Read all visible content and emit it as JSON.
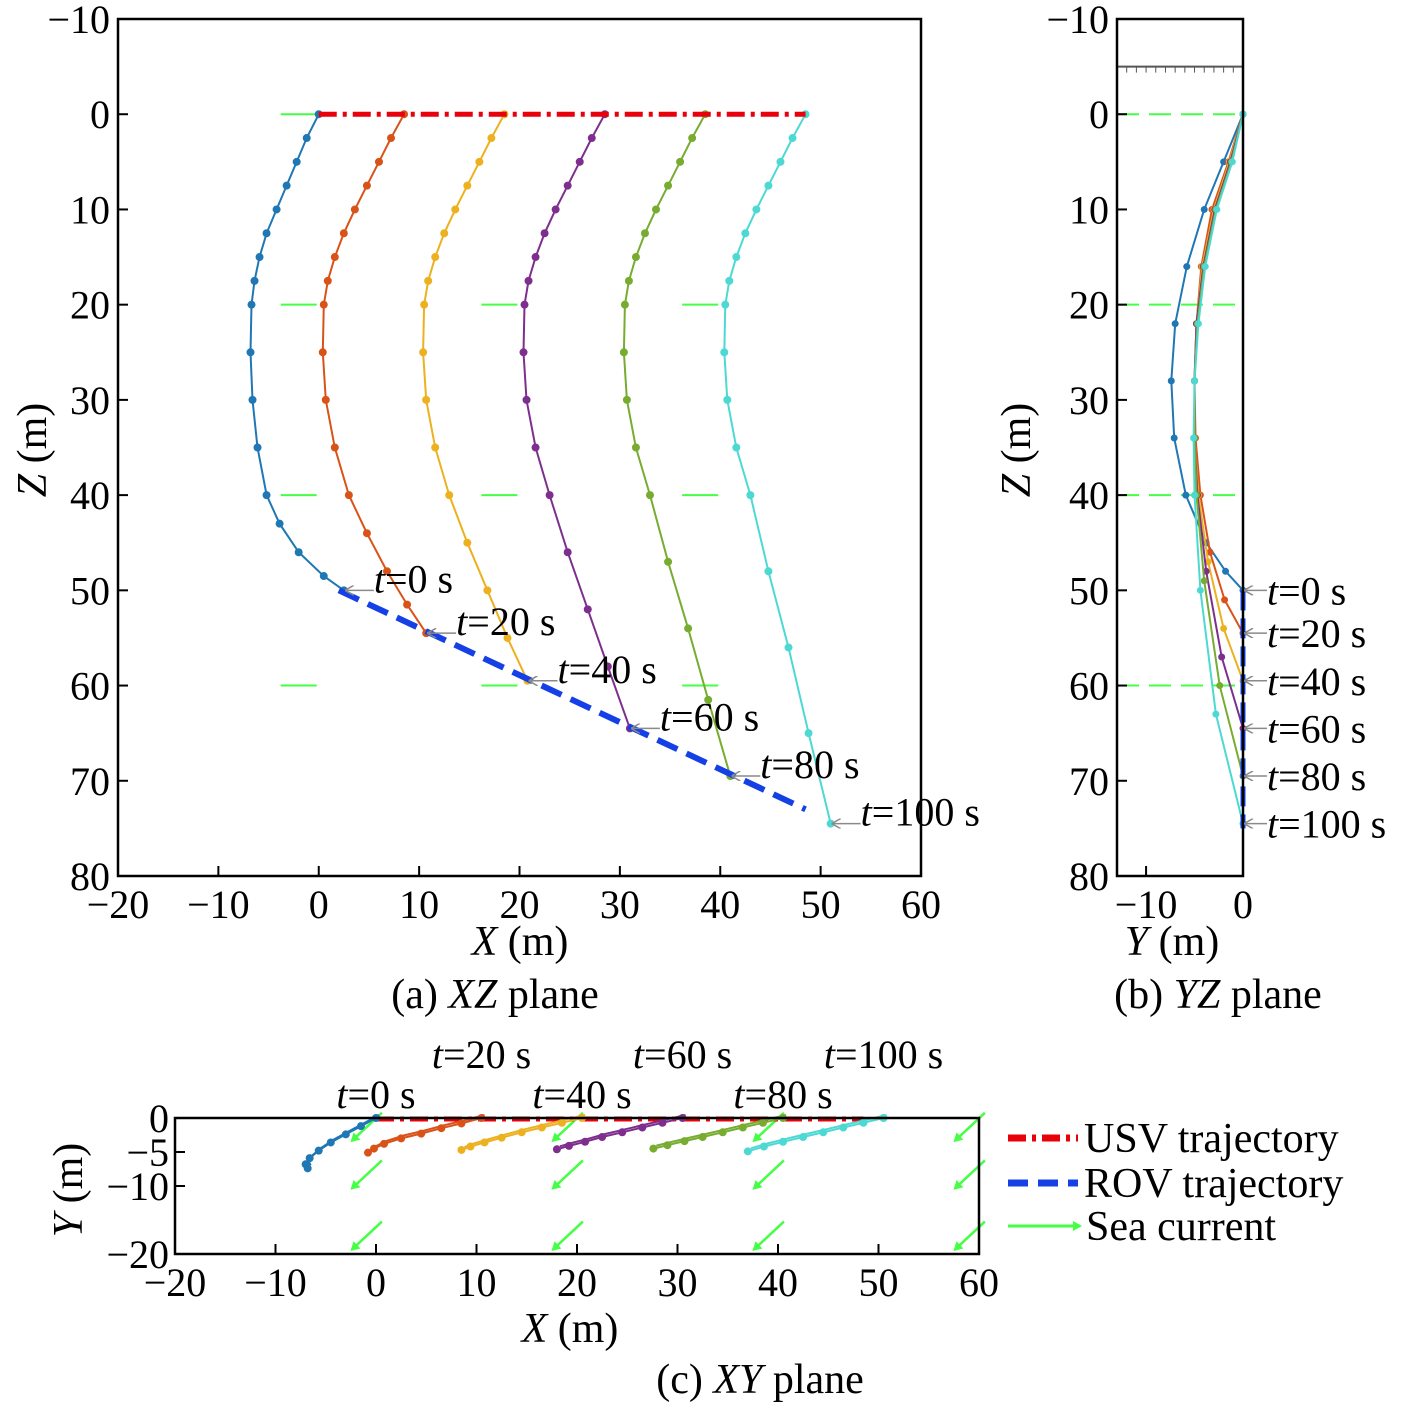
{
  "chart_data": [
    {
      "id": "xz",
      "type": "line",
      "caption": {
        "prefix": "(a) ",
        "italic": "XZ",
        "suffix": " plane"
      },
      "xlabel": {
        "italic": "X",
        "rest": " (m)"
      },
      "ylabel": {
        "italic": "Z",
        "rest": " (m)"
      },
      "xlim": [
        -20,
        60
      ],
      "ylim": [
        -10,
        80
      ],
      "y_inverted": true,
      "xticks": [
        -20,
        -10,
        0,
        10,
        20,
        30,
        40,
        50,
        60
      ],
      "yticks": [
        -10,
        0,
        10,
        20,
        30,
        40,
        50,
        60,
        70,
        80
      ],
      "xtick_labels": [
        "−20",
        "−10",
        "0",
        "10",
        "20",
        "30",
        "40",
        "50",
        "60"
      ],
      "ytick_labels": [
        "−10",
        "0",
        "10",
        "20",
        "30",
        "40",
        "50",
        "60",
        "70",
        "80"
      ],
      "usv_trajectory": {
        "x": [
          0,
          48.5
        ],
        "z": [
          0,
          0
        ]
      },
      "rov_trajectory": {
        "x": [
          2,
          48.5
        ],
        "z": [
          50,
          73
        ]
      },
      "current_markers": [
        {
          "x": -2,
          "z": 0
        },
        {
          "x": -2,
          "z": 20
        },
        {
          "x": -2,
          "z": 40
        },
        {
          "x": -2,
          "z": 60
        },
        {
          "x": 18,
          "z": 20
        },
        {
          "x": 18,
          "z": 40
        },
        {
          "x": 18,
          "z": 60
        },
        {
          "x": 38,
          "z": 20
        },
        {
          "x": 38,
          "z": 40
        },
        {
          "x": 38,
          "z": 60
        }
      ],
      "series": [
        {
          "label_t": "t",
          "label_rest": "=0 s",
          "color": "#1f77b4",
          "x": [
            0,
            -1.2,
            -2.2,
            -3.2,
            -4.2,
            -5.2,
            -5.9,
            -6.4,
            -6.7,
            -6.8,
            -6.6,
            -6.1,
            -5.2,
            -3.9,
            -2.0,
            0.5,
            2.5
          ],
          "z": [
            0,
            2.5,
            5.0,
            7.5,
            10.0,
            12.5,
            15.0,
            17.5,
            20.0,
            25.0,
            30.0,
            35.0,
            40.0,
            43.0,
            46.0,
            48.5,
            50.0
          ]
        },
        {
          "label_t": "t",
          "label_rest": "=20 s",
          "color": "#d95319",
          "x": [
            8.5,
            7.2,
            6.0,
            4.8,
            3.6,
            2.5,
            1.6,
            0.9,
            0.5,
            0.4,
            0.7,
            1.6,
            3.0,
            4.8,
            6.8,
            8.8,
            10.7
          ],
          "z": [
            0,
            2.5,
            5.0,
            7.5,
            10.0,
            12.5,
            15.0,
            17.5,
            20.0,
            25.0,
            30.0,
            35.0,
            40.0,
            44.0,
            48.0,
            51.5,
            54.5
          ]
        },
        {
          "label_t": "t",
          "label_rest": "=40 s",
          "color": "#edb120",
          "x": [
            18.5,
            17.2,
            16.0,
            14.8,
            13.6,
            12.5,
            11.6,
            10.9,
            10.5,
            10.4,
            10.7,
            11.6,
            13.0,
            14.8,
            16.8,
            18.8,
            20.8
          ],
          "z": [
            0,
            2.5,
            5.0,
            7.5,
            10.0,
            12.5,
            15.0,
            17.5,
            20.0,
            25.0,
            30.0,
            35.0,
            40.0,
            45.0,
            50.0,
            55.0,
            59.5
          ]
        },
        {
          "label_t": "t",
          "label_rest": "=60 s",
          "color": "#7e2f8e",
          "x": [
            28.5,
            27.2,
            26.0,
            24.8,
            23.6,
            22.5,
            21.6,
            20.9,
            20.5,
            20.4,
            20.7,
            21.6,
            23.0,
            24.8,
            26.8,
            28.8,
            31.0
          ],
          "z": [
            0,
            2.5,
            5.0,
            7.5,
            10.0,
            12.5,
            15.0,
            17.5,
            20.0,
            25.0,
            30.0,
            35.0,
            40.0,
            46.0,
            52.0,
            58.0,
            64.5
          ]
        },
        {
          "label_t": "t",
          "label_rest": "=80 s",
          "color": "#77ac30",
          "x": [
            38.5,
            37.2,
            36.0,
            34.8,
            33.6,
            32.5,
            31.6,
            30.9,
            30.5,
            30.4,
            30.7,
            31.6,
            33.0,
            34.8,
            36.8,
            38.8,
            41.0
          ],
          "z": [
            0,
            2.5,
            5.0,
            7.5,
            10.0,
            12.5,
            15.0,
            17.5,
            20.0,
            25.0,
            30.0,
            35.0,
            40.0,
            47.0,
            54.0,
            61.5,
            69.5
          ]
        },
        {
          "label_t": "t",
          "label_rest": "=100 s",
          "color": "#4dd9d3",
          "x": [
            48.5,
            47.2,
            46.0,
            44.8,
            43.6,
            42.5,
            41.6,
            40.9,
            40.5,
            40.4,
            40.7,
            41.6,
            43.0,
            44.8,
            46.8,
            48.8,
            51.0
          ],
          "z": [
            0,
            2.5,
            5.0,
            7.5,
            10.0,
            12.5,
            15.0,
            17.5,
            20.0,
            25.0,
            30.0,
            35.0,
            40.0,
            48.0,
            56.0,
            65.0,
            74.5
          ]
        }
      ]
    },
    {
      "id": "yz",
      "type": "line",
      "caption": {
        "prefix": "(b) ",
        "italic": "YZ",
        "suffix": " plane"
      },
      "xlabel": {
        "italic": "Y",
        "rest": " (m)"
      },
      "ylabel": {
        "italic": "Z",
        "rest": " (m)"
      },
      "xlim": [
        -13,
        0
      ],
      "ylim": [
        -10,
        80
      ],
      "y_inverted": true,
      "xticks": [
        -10,
        0
      ],
      "yticks": [
        -10,
        0,
        10,
        20,
        30,
        40,
        50,
        60,
        70,
        80
      ],
      "xtick_labels": [
        "−10",
        "0"
      ],
      "ytick_labels": [
        "−10",
        "0",
        "10",
        "20",
        "30",
        "40",
        "50",
        "60",
        "70",
        "80"
      ],
      "surface_z": -5,
      "rov_y": 0,
      "rov_z": [
        50,
        75
      ],
      "current_marker_z": [
        0,
        20,
        40,
        60
      ],
      "series": [
        {
          "label_t": "t",
          "label_rest": "=0 s",
          "color": "#1f77b4",
          "y": [
            0,
            -2.0,
            -4.0,
            -5.8,
            -7.0,
            -7.4,
            -7.1,
            -5.9,
            -3.8,
            -1.8,
            0
          ],
          "z": [
            0,
            5,
            10,
            16,
            22,
            28,
            34,
            40,
            45,
            48,
            50
          ]
        },
        {
          "label_t": "t",
          "label_rest": "=20 s",
          "color": "#d95319",
          "y": [
            0,
            -1.5,
            -3.2,
            -4.3,
            -4.8,
            -5.0,
            -4.9,
            -4.4,
            -3.4,
            -1.9,
            0
          ],
          "z": [
            0,
            5,
            10,
            16,
            22,
            28,
            34,
            40,
            46,
            51,
            54.5
          ]
        },
        {
          "label_t": "t",
          "label_rest": "=40 s",
          "color": "#edb120",
          "y": [
            0,
            -1.4,
            -3.0,
            -4.2,
            -4.8,
            -5.0,
            -5.0,
            -4.6,
            -3.6,
            -2.0,
            0
          ],
          "z": [
            0,
            5,
            10,
            16,
            22,
            28,
            34,
            40,
            47,
            54,
            59.5
          ]
        },
        {
          "label_t": "t",
          "label_rest": "=60 s",
          "color": "#7e2f8e",
          "y": [
            0,
            -1.3,
            -2.9,
            -4.1,
            -4.8,
            -5.0,
            -5.0,
            -4.7,
            -3.8,
            -2.2,
            0
          ],
          "z": [
            0,
            5,
            10,
            16,
            22,
            28,
            34,
            40,
            48,
            57,
            64.5
          ]
        },
        {
          "label_t": "t",
          "label_rest": "=80 s",
          "color": "#77ac30",
          "y": [
            0,
            -1.2,
            -2.8,
            -4.0,
            -4.7,
            -5.0,
            -5.0,
            -4.8,
            -4.0,
            -2.4,
            0
          ],
          "z": [
            0,
            5,
            10,
            16,
            22,
            28,
            34,
            40,
            49,
            60,
            69.5
          ]
        },
        {
          "label_t": "t",
          "label_rest": "=100 s",
          "color": "#4dd9d3",
          "y": [
            0,
            -1.1,
            -2.7,
            -3.9,
            -4.6,
            -5.0,
            -5.1,
            -5.0,
            -4.4,
            -2.8,
            0
          ],
          "z": [
            0,
            5,
            10,
            16,
            22,
            28,
            34,
            40,
            50,
            63,
            74.5
          ]
        }
      ]
    },
    {
      "id": "xy",
      "type": "line",
      "caption": {
        "prefix": "(c) ",
        "italic": "XY",
        "suffix": " plane"
      },
      "xlabel": {
        "italic": "X",
        "rest": " (m)"
      },
      "ylabel": {
        "italic": "Y",
        "rest": " (m)"
      },
      "xlim": [
        -20,
        60
      ],
      "ylim": [
        -20,
        0
      ],
      "xticks": [
        -20,
        -10,
        0,
        10,
        20,
        30,
        40,
        50,
        60
      ],
      "yticks": [
        0,
        -5,
        -10,
        -20
      ],
      "xtick_labels": [
        "−20",
        "−10",
        "0",
        "10",
        "20",
        "30",
        "40",
        "50",
        "60"
      ],
      "ytick_labels": [
        "0",
        "−5",
        "−10",
        "−20"
      ],
      "usv_trajectory": {
        "x": [
          0,
          48.5
        ],
        "y": [
          0,
          0
        ]
      },
      "sea_current_arrows": [
        {
          "x": -2,
          "y": -1
        },
        {
          "x": -2,
          "y": -8
        },
        {
          "x": -2,
          "y": -17
        },
        {
          "x": 18,
          "y": -1
        },
        {
          "x": 18,
          "y": -8
        },
        {
          "x": 18,
          "y": -17
        },
        {
          "x": 38,
          "y": -1
        },
        {
          "x": 38,
          "y": -8
        },
        {
          "x": 38,
          "y": -17
        },
        {
          "x": 58,
          "y": -1
        },
        {
          "x": 58,
          "y": -8
        },
        {
          "x": 58,
          "y": -17
        }
      ],
      "series": [
        {
          "label_t": "t",
          "label_rest": "=0 s",
          "color": "#1f77b4",
          "x": [
            0,
            -1.5,
            -3.0,
            -4.5,
            -5.7,
            -6.6,
            -7.0,
            -6.8
          ],
          "y": [
            0,
            -1.2,
            -2.4,
            -3.6,
            -4.8,
            -5.9,
            -6.8,
            -7.4
          ]
        },
        {
          "label_t": "t",
          "label_rest": "=20 s",
          "color": "#d95319",
          "x": [
            10.5,
            8.5,
            6.5,
            4.5,
            2.5,
            0.8,
            -0.2,
            -0.8
          ],
          "y": [
            0,
            -0.8,
            -1.5,
            -2.3,
            -3.0,
            -3.8,
            -4.5,
            -5.1
          ]
        },
        {
          "label_t": "t",
          "label_rest": "=40 s",
          "color": "#edb120",
          "x": [
            20.5,
            18.5,
            16.5,
            14.5,
            12.5,
            10.8,
            9.4,
            8.5
          ],
          "y": [
            0,
            -0.7,
            -1.4,
            -2.1,
            -2.9,
            -3.6,
            -4.2,
            -4.7
          ]
        },
        {
          "label_t": "t",
          "label_rest": "=60 s",
          "color": "#7e2f8e",
          "x": [
            30.5,
            28.5,
            26.5,
            24.5,
            22.5,
            20.8,
            19.2,
            18.0
          ],
          "y": [
            0,
            -0.7,
            -1.4,
            -2.1,
            -2.8,
            -3.5,
            -4.1,
            -4.6
          ]
        },
        {
          "label_t": "t",
          "label_rest": "=80 s",
          "color": "#77ac30",
          "x": [
            40.5,
            38.5,
            36.5,
            34.5,
            32.5,
            30.7,
            29.0,
            27.6
          ],
          "y": [
            0,
            -0.7,
            -1.4,
            -2.1,
            -2.8,
            -3.4,
            -4.0,
            -4.5
          ]
        },
        {
          "label_t": "t",
          "label_rest": "=100 s",
          "color": "#4dd9d3",
          "x": [
            50.5,
            48.5,
            46.5,
            44.5,
            42.5,
            40.5,
            38.6,
            37.0
          ],
          "y": [
            0,
            -0.7,
            -1.4,
            -2.1,
            -2.8,
            -3.5,
            -4.2,
            -4.9
          ]
        }
      ]
    }
  ],
  "legend": {
    "placement": "right of XY plane",
    "items": [
      {
        "label": "USV trajectory",
        "color": "#e8000b",
        "style": "dash-dot"
      },
      {
        "label": "ROV trajectory",
        "color": "#1440e6",
        "style": "dashed"
      },
      {
        "label": "Sea current",
        "color": "#44ff44",
        "style": "arrow"
      }
    ]
  },
  "colors": {
    "usv": "#e8000b",
    "rov": "#1440e6",
    "current": "#44ff44"
  }
}
